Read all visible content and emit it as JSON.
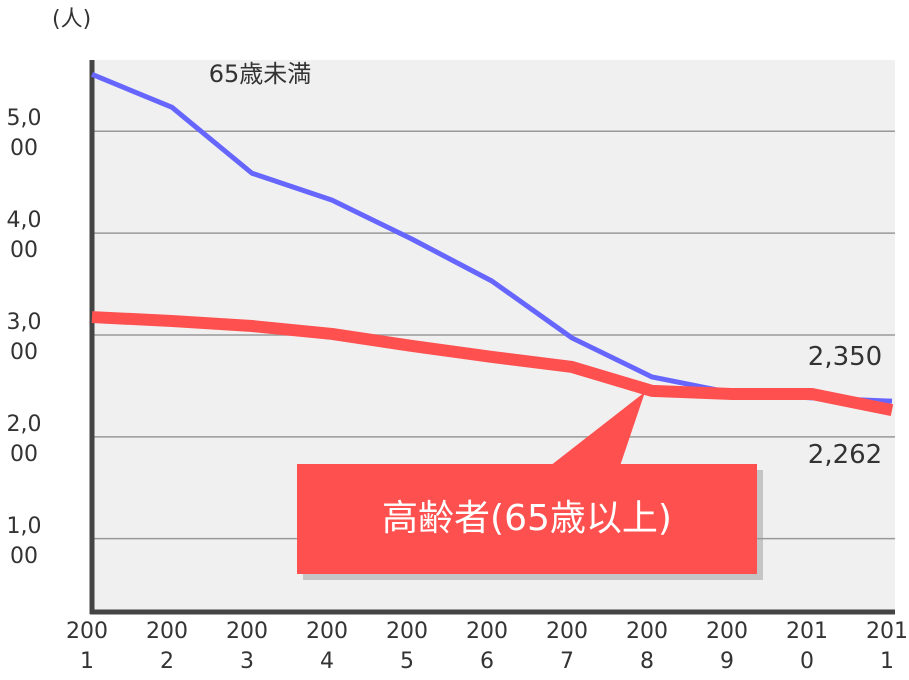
{
  "chart_data": {
    "type": "line",
    "y_label": "(人)",
    "categories": [
      "2001",
      "2002",
      "2003",
      "2004",
      "2005",
      "2006",
      "2007",
      "2008",
      "2009",
      "2010",
      "2011"
    ],
    "series": [
      {
        "name": "65歳未満",
        "color": "#6666ff",
        "values": [
          5559,
          5235,
          4588,
          4324,
          3941,
          3529,
          2971,
          2588,
          2431,
          2382,
          2350
        ],
        "value_labels": [
          null,
          null,
          null,
          null,
          null,
          null,
          null,
          null,
          null,
          null,
          "2,350"
        ]
      },
      {
        "name": "高齢者(65歳以上)",
        "color": "#ff5050",
        "values": [
          3176,
          3137,
          3088,
          3010,
          2892,
          2784,
          2686,
          2451,
          2421,
          2421,
          2262
        ],
        "value_labels": [
          null,
          null,
          null,
          null,
          null,
          null,
          null,
          null,
          null,
          null,
          "2,262"
        ]
      }
    ],
    "ylim": [
      280,
      5700
    ],
    "yticks": [
      {
        "value": 1000,
        "label": "1,000"
      },
      {
        "value": 2000,
        "label": "2,000"
      },
      {
        "value": 3000,
        "label": "3,000"
      },
      {
        "value": 4000,
        "label": "4,000"
      },
      {
        "value": 5000,
        "label": "5,000"
      }
    ],
    "grid": true
  }
}
